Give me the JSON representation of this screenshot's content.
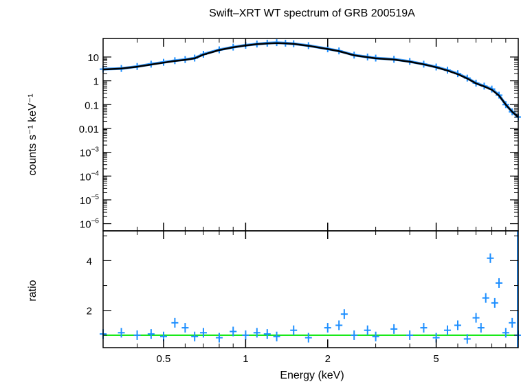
{
  "chart_data": [
    {
      "type": "scatter",
      "title": "Swift–XRT WT spectrum of GRB 200519A",
      "xlabel": "Energy (keV)",
      "ylabel": "counts s⁻¹ keV⁻¹",
      "xscale": "log",
      "yscale": "log",
      "xlim": [
        0.3,
        10
      ],
      "ylim": [
        5e-07,
        60
      ],
      "x_ticks": [
        0.5,
        1,
        2,
        5
      ],
      "x_tick_labels": [
        "0.5",
        "1",
        "2",
        "5"
      ],
      "y_ticks": [
        10,
        1,
        0.1,
        0.01,
        0.001,
        0.0001,
        1e-05,
        1e-06
      ],
      "y_tick_labels": [
        {
          "base": "10",
          "exp": ""
        },
        {
          "base": "1",
          "exp": ""
        },
        {
          "base": "0.1",
          "exp": ""
        },
        {
          "base": "0.01",
          "exp": ""
        },
        {
          "base": "10",
          "exp": "−3"
        },
        {
          "base": "10",
          "exp": "−4"
        },
        {
          "base": "10",
          "exp": "−5"
        },
        {
          "base": "10",
          "exp": "−6"
        }
      ],
      "series": [
        {
          "kind": "data",
          "color": "#1e8fff",
          "x": [
            0.3,
            0.35,
            0.4,
            0.45,
            0.5,
            0.55,
            0.6,
            0.65,
            0.7,
            0.8,
            0.9,
            1.0,
            1.1,
            1.2,
            1.3,
            1.4,
            1.5,
            1.7,
            2.0,
            2.2,
            2.5,
            2.8,
            3.0,
            3.5,
            4.0,
            4.5,
            5.0,
            5.5,
            6.0,
            6.5,
            7.0,
            7.5,
            8.0,
            8.5,
            9.0,
            9.5,
            10.0
          ],
          "y": [
            3.1,
            3.3,
            4.0,
            5.0,
            6.0,
            7.0,
            7.8,
            9.0,
            13,
            20,
            26,
            31,
            35,
            38,
            40,
            38,
            36,
            30,
            22,
            18,
            12,
            10,
            9,
            8,
            6.5,
            5.0,
            3.8,
            2.8,
            2.0,
            1.3,
            0.8,
            0.6,
            0.45,
            0.25,
            0.1,
            0.05,
            0.03
          ]
        },
        {
          "kind": "model",
          "color": "#000000",
          "x": [
            0.3,
            0.35,
            0.4,
            0.45,
            0.5,
            0.55,
            0.6,
            0.65,
            0.7,
            0.8,
            0.9,
            1.0,
            1.1,
            1.2,
            1.3,
            1.4,
            1.5,
            1.7,
            2.0,
            2.2,
            2.5,
            2.8,
            3.0,
            3.5,
            4.0,
            4.5,
            5.0,
            5.5,
            6.0,
            6.5,
            7.0,
            7.5,
            8.0,
            8.5,
            9.0,
            9.5,
            10.0
          ],
          "y": [
            3.0,
            3.3,
            3.9,
            4.8,
            5.8,
            6.8,
            7.6,
            8.8,
            12.5,
            19.5,
            25.5,
            30.5,
            34.5,
            37,
            38.5,
            37.5,
            35.5,
            29.5,
            21.5,
            17.5,
            11.8,
            9.8,
            8.8,
            7.8,
            6.3,
            4.9,
            3.7,
            2.7,
            1.9,
            1.25,
            0.78,
            0.58,
            0.42,
            0.24,
            0.1,
            0.05,
            0.03
          ]
        }
      ]
    },
    {
      "type": "scatter",
      "xlabel": "Energy (keV)",
      "ylabel": "ratio",
      "xscale": "log",
      "xlim": [
        0.3,
        10
      ],
      "ylim": [
        0.5,
        5.2
      ],
      "y_ticks": [
        2,
        4
      ],
      "y_tick_labels": [
        "2",
        "4"
      ],
      "reference_line": {
        "y": 1,
        "color": "#00e600"
      },
      "series": [
        {
          "kind": "ratio",
          "color": "#1e8fff",
          "x": [
            0.3,
            0.35,
            0.4,
            0.45,
            0.5,
            0.55,
            0.6,
            0.65,
            0.7,
            0.8,
            0.9,
            1.0,
            1.1,
            1.2,
            1.3,
            1.5,
            1.7,
            2.0,
            2.2,
            2.3,
            2.5,
            2.8,
            3.0,
            3.5,
            4.0,
            4.5,
            5.0,
            5.5,
            6.0,
            6.5,
            7.0,
            7.3,
            7.6,
            7.9,
            8.2,
            8.5,
            9.0,
            9.5,
            10.0
          ],
          "y": [
            1.05,
            1.1,
            1.0,
            1.05,
            0.95,
            1.5,
            1.3,
            0.95,
            1.1,
            0.9,
            1.15,
            1.0,
            1.1,
            1.05,
            0.95,
            1.2,
            0.9,
            1.3,
            1.4,
            1.85,
            1.0,
            1.2,
            0.95,
            1.25,
            1.0,
            1.3,
            0.9,
            1.2,
            1.4,
            0.85,
            1.7,
            1.3,
            2.5,
            4.1,
            2.3,
            3.1,
            1.1,
            1.5,
            1.0
          ]
        }
      ]
    }
  ]
}
